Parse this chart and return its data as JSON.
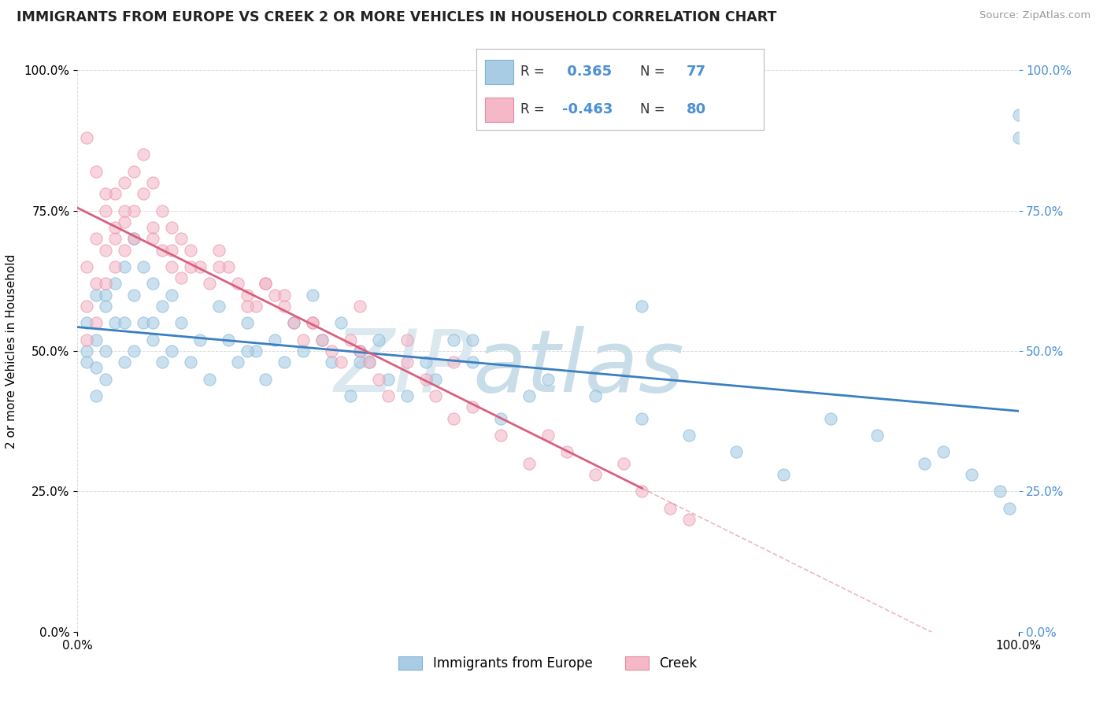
{
  "title": "IMMIGRANTS FROM EUROPE VS CREEK 2 OR MORE VEHICLES IN HOUSEHOLD CORRELATION CHART",
  "source": "Source: ZipAtlas.com",
  "ylabel": "2 or more Vehicles in Household",
  "xlim": [
    0.0,
    100.0
  ],
  "ylim": [
    0.0,
    100.0
  ],
  "y_tick_values": [
    0,
    25,
    50,
    75,
    100
  ],
  "y_tick_labels": [
    "0.0%",
    "25.0%",
    "50.0%",
    "75.0%",
    "100.0%"
  ],
  "r_blue": 0.365,
  "n_blue": 77,
  "r_pink": -0.463,
  "n_pink": 80,
  "blue_color": "#a8cce4",
  "blue_edge_color": "#7fb3d3",
  "pink_color": "#f4b8c8",
  "pink_edge_color": "#e88aa0",
  "blue_line_color": "#3a7fc1",
  "pink_line_color": "#d95f7f",
  "watermark_zip_color": "#dce8f0",
  "watermark_atlas_color": "#c8dde8",
  "background_color": "#ffffff",
  "grid_color": "#cccccc",
  "legend_label_blue": "Immigrants from Europe",
  "legend_label_pink": "Creek",
  "blue_scatter_x": [
    1,
    1,
    1,
    2,
    2,
    2,
    2,
    3,
    3,
    3,
    4,
    4,
    5,
    5,
    5,
    6,
    6,
    6,
    7,
    7,
    8,
    8,
    9,
    9,
    10,
    10,
    11,
    12,
    13,
    14,
    15,
    16,
    17,
    18,
    19,
    20,
    21,
    22,
    23,
    24,
    25,
    26,
    27,
    28,
    29,
    30,
    31,
    32,
    33,
    35,
    37,
    38,
    40,
    42,
    45,
    48,
    50,
    55,
    60,
    65,
    70,
    75,
    80,
    85,
    90,
    92,
    95,
    98,
    99,
    100,
    100,
    60,
    42,
    30,
    18,
    8,
    3
  ],
  "blue_scatter_y": [
    55,
    50,
    48,
    60,
    52,
    47,
    42,
    58,
    50,
    45,
    62,
    55,
    65,
    55,
    48,
    70,
    60,
    50,
    65,
    55,
    62,
    52,
    58,
    48,
    60,
    50,
    55,
    48,
    52,
    45,
    58,
    52,
    48,
    55,
    50,
    45,
    52,
    48,
    55,
    50,
    60,
    52,
    48,
    55,
    42,
    50,
    48,
    52,
    45,
    42,
    48,
    45,
    52,
    48,
    38,
    42,
    45,
    42,
    38,
    35,
    32,
    28,
    38,
    35,
    30,
    32,
    28,
    25,
    22,
    92,
    88,
    58,
    52,
    48,
    50,
    55,
    60
  ],
  "pink_scatter_x": [
    1,
    1,
    1,
    2,
    2,
    2,
    3,
    3,
    3,
    4,
    4,
    4,
    5,
    5,
    5,
    6,
    6,
    6,
    7,
    7,
    8,
    8,
    9,
    9,
    10,
    10,
    11,
    11,
    12,
    13,
    14,
    15,
    16,
    17,
    18,
    19,
    20,
    21,
    22,
    23,
    24,
    25,
    26,
    27,
    28,
    29,
    30,
    31,
    32,
    33,
    35,
    37,
    38,
    40,
    42,
    45,
    48,
    50,
    52,
    55,
    58,
    60,
    63,
    65,
    30,
    20,
    10,
    5,
    2,
    35,
    40,
    18,
    12,
    8,
    4,
    3,
    1,
    25,
    22,
    15
  ],
  "pink_scatter_y": [
    65,
    58,
    52,
    70,
    62,
    55,
    75,
    68,
    62,
    78,
    70,
    65,
    80,
    73,
    68,
    82,
    75,
    70,
    85,
    78,
    80,
    72,
    75,
    68,
    72,
    65,
    70,
    63,
    68,
    65,
    62,
    68,
    65,
    62,
    60,
    58,
    62,
    60,
    58,
    55,
    52,
    55,
    52,
    50,
    48,
    52,
    50,
    48,
    45,
    42,
    48,
    45,
    42,
    38,
    40,
    35,
    30,
    35,
    32,
    28,
    30,
    25,
    22,
    20,
    58,
    62,
    68,
    75,
    82,
    52,
    48,
    58,
    65,
    70,
    72,
    78,
    88,
    55,
    60,
    65
  ]
}
